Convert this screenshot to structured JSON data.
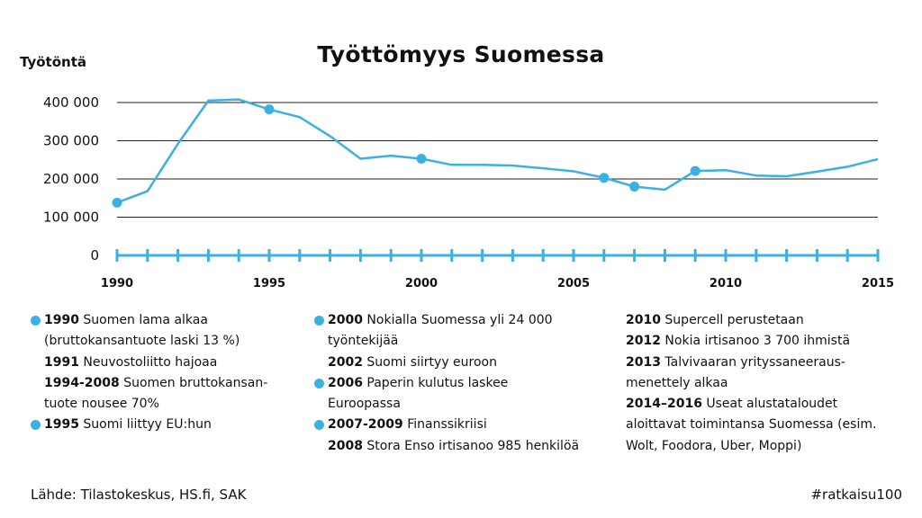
{
  "title": "Työttömyys Suomessa",
  "ylabel": "Työtöntä",
  "chart_data": {
    "type": "line",
    "title": "Työttömyys Suomessa",
    "ylabel": "Työtöntä",
    "xlabel": "",
    "x": [
      1990,
      1991,
      1992,
      1993,
      1994,
      1995,
      1996,
      1997,
      1998,
      1999,
      2000,
      2001,
      2002,
      2003,
      2004,
      2005,
      2006,
      2007,
      2008,
      2009,
      2010,
      2011,
      2012,
      2013,
      2014,
      2015
    ],
    "series": [
      {
        "values": [
          138000,
          168000,
          292000,
          405000,
          408000,
          382000,
          362000,
          312000,
          253000,
          261000,
          253000,
          237000,
          237000,
          235000,
          228000,
          220000,
          203000,
          180000,
          172000,
          221000,
          223000,
          209000,
          207000,
          219000,
          232000,
          252000
        ]
      }
    ],
    "highlighted_years": [
      1990,
      1995,
      2000,
      2006,
      2007,
      2009
    ],
    "ylim": [
      0,
      400000
    ],
    "yticks": [
      0,
      100000,
      200000,
      300000,
      400000
    ],
    "ytick_labels": [
      "0",
      "100 000",
      "200 000",
      "300 000",
      "400 000"
    ],
    "xtick_labels": [
      "1990",
      "1995",
      "2000",
      "2005",
      "2010",
      "2015"
    ],
    "grid": true,
    "line_color": "#3bb1e3",
    "axis_color": "#3bb1e3"
  },
  "events": {
    "col1": [
      {
        "dot": true,
        "year": "1990",
        "text": " Suomen lama alkaa (bruttokansantuote laski 13 %)"
      },
      {
        "dot": false,
        "year": "1991",
        "text": " Neuvostoliitto hajoaa"
      },
      {
        "dot": false,
        "year": "1994-2008",
        "text": " Suomen bruttokansan-tuote nousee 70%"
      },
      {
        "dot": true,
        "year": "1995",
        "text": " Suomi liittyy EU:hun"
      }
    ],
    "col2": [
      {
        "dot": true,
        "year": "2000",
        "text": " Nokialla Suomessa yli 24 000 työntekijää"
      },
      {
        "dot": false,
        "year": "2002",
        "text": " Suomi siirtyy euroon"
      },
      {
        "dot": true,
        "year": "2006",
        "text": " Paperin kulutus laskee Euroopassa"
      },
      {
        "dot": true,
        "year": "2007-2009",
        "text": " Finanssikriisi"
      },
      {
        "dot": false,
        "year": "2008",
        "text": " Stora Enso irtisanoo 985 henkilöä"
      }
    ],
    "col3": [
      {
        "dot": false,
        "year": "2010",
        "text": " Supercell perustetaan"
      },
      {
        "dot": false,
        "year": "2012",
        "text": " Nokia irtisanoo 3 700 ihmistä"
      },
      {
        "dot": false,
        "year": "2013",
        "text": " Talvivaaran yrityssaneeraus-menettely alkaa"
      },
      {
        "dot": false,
        "year": "2014–2016",
        "text": " Useat alustataloudet aloittavat toimintansa Suomessa (esim. Wolt, Foodora, Uber, Moppi)"
      }
    ]
  },
  "footer": {
    "source": "Lähde: Tilastokeskus, HS.fi, SAK",
    "hashtag": "#ratkaisu100"
  }
}
